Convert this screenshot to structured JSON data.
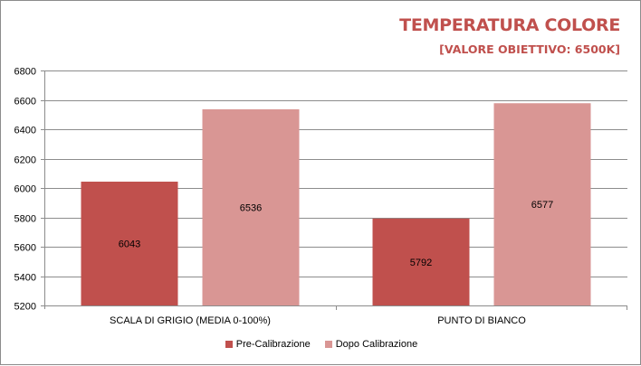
{
  "chart_data": {
    "type": "bar",
    "title": "TEMPERATURA COLORE",
    "subtitle": "[VALORE OBIETTIVO: 6500K]",
    "categories": [
      "SCALA DI GRIGIO  (MEDIA  0-100%)",
      "PUNTO DI BIANCO"
    ],
    "series": [
      {
        "name": "Pre-Calibrazione",
        "values": [
          6043,
          5792
        ],
        "color": "#c0504d"
      },
      {
        "name": "Dopo Calibrazione",
        "values": [
          6536,
          6577
        ],
        "color": "#d99694"
      }
    ],
    "ylim": [
      5200,
      6800
    ],
    "yticks": [
      5200,
      5400,
      5600,
      5800,
      6000,
      6200,
      6400,
      6600,
      6800
    ],
    "grid": true,
    "legend_position": "bottom"
  }
}
